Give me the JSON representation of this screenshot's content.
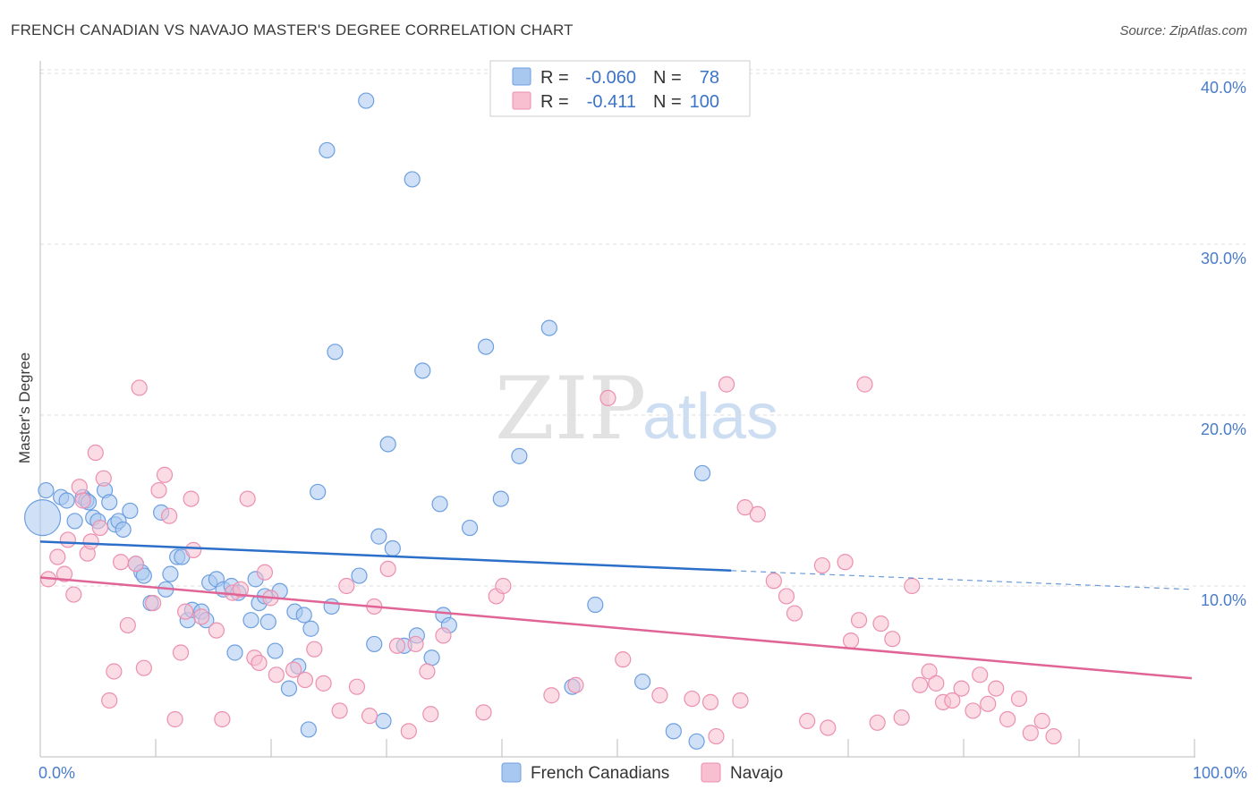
{
  "chart_data": {
    "type": "scatter",
    "title": "FRENCH CANADIAN VS NAVAJO MASTER'S DEGREE CORRELATION CHART",
    "source": "Source: ZipAtlas.com",
    "ylabel": "Master's Degree",
    "xlabel": "",
    "xlim": [
      0,
      100
    ],
    "ylim": [
      0,
      42
    ],
    "x_tick_labels": {
      "left": "0.0%",
      "right": "100.0%"
    },
    "y_ticks": [
      {
        "value": 10,
        "label": "10.0%"
      },
      {
        "value": 20,
        "label": "20.0%"
      },
      {
        "value": 30,
        "label": "30.0%"
      },
      {
        "value": 40,
        "label": "40.0%"
      }
    ],
    "grid": "horizontal dashed",
    "watermark": {
      "zip": "ZIP",
      "atlas": "atlas"
    },
    "legend": {
      "placement": "top-center",
      "rows": [
        {
          "r_label": "R =",
          "r_value": "-0.060",
          "n_label": "N =",
          "n_value": "78"
        },
        {
          "r_label": "R =",
          "r_value": "-0.411",
          "n_label": "N =",
          "n_value": "100"
        }
      ]
    },
    "series": [
      {
        "name": "French Canadians",
        "fill": "#a9c8f0",
        "stroke": "#6d9fe0",
        "line_color": "#2c6fc8",
        "trend": {
          "x0": 0,
          "y0": 12.6,
          "x1": 60,
          "y1": 10.9,
          "dash_to_x": 100,
          "dash_to_y": 9.8
        },
        "points": [
          [
            0.5,
            15.6
          ],
          [
            1.8,
            15.2
          ],
          [
            2.3,
            15.0
          ],
          [
            3.0,
            13.8
          ],
          [
            3.7,
            15.2
          ],
          [
            4.0,
            15.0
          ],
          [
            4.2,
            14.9
          ],
          [
            4.6,
            14.0
          ],
          [
            5.0,
            13.8
          ],
          [
            5.6,
            15.6
          ],
          [
            6.0,
            14.9
          ],
          [
            6.5,
            13.6
          ],
          [
            6.8,
            13.8
          ],
          [
            7.2,
            13.3
          ],
          [
            7.8,
            14.4
          ],
          [
            8.3,
            11.3
          ],
          [
            8.8,
            10.8
          ],
          [
            9.0,
            10.6
          ],
          [
            9.6,
            9.0
          ],
          [
            10.5,
            14.3
          ],
          [
            10.9,
            9.8
          ],
          [
            11.3,
            10.7
          ],
          [
            11.9,
            11.7
          ],
          [
            12.3,
            11.7
          ],
          [
            12.8,
            8.0
          ],
          [
            13.2,
            8.6
          ],
          [
            14.0,
            8.5
          ],
          [
            14.4,
            8.0
          ],
          [
            14.7,
            10.2
          ],
          [
            15.3,
            10.4
          ],
          [
            15.9,
            9.8
          ],
          [
            16.6,
            10.0
          ],
          [
            16.9,
            6.1
          ],
          [
            17.2,
            9.6
          ],
          [
            18.3,
            8.0
          ],
          [
            18.7,
            10.4
          ],
          [
            19.0,
            9.0
          ],
          [
            19.5,
            9.4
          ],
          [
            19.8,
            7.9
          ],
          [
            20.4,
            6.2
          ],
          [
            20.8,
            9.7
          ],
          [
            21.6,
            4.0
          ],
          [
            22.1,
            8.5
          ],
          [
            22.4,
            5.3
          ],
          [
            22.9,
            8.3
          ],
          [
            23.3,
            1.6
          ],
          [
            23.5,
            7.5
          ],
          [
            24.1,
            15.5
          ],
          [
            24.9,
            35.5
          ],
          [
            25.3,
            8.8
          ],
          [
            25.6,
            23.7
          ],
          [
            27.7,
            10.6
          ],
          [
            28.3,
            38.4
          ],
          [
            29.0,
            6.6
          ],
          [
            29.4,
            12.9
          ],
          [
            29.8,
            2.1
          ],
          [
            30.2,
            18.3
          ],
          [
            30.6,
            12.2
          ],
          [
            31.6,
            6.5
          ],
          [
            32.3,
            33.8
          ],
          [
            32.7,
            7.1
          ],
          [
            33.2,
            22.6
          ],
          [
            34.0,
            5.8
          ],
          [
            34.7,
            14.8
          ],
          [
            35.0,
            8.3
          ],
          [
            35.5,
            7.7
          ],
          [
            37.3,
            13.4
          ],
          [
            38.7,
            24.0
          ],
          [
            40.0,
            15.1
          ],
          [
            41.6,
            17.6
          ],
          [
            44.2,
            25.1
          ],
          [
            46.2,
            4.1
          ],
          [
            48.2,
            8.9
          ],
          [
            52.3,
            4.4
          ],
          [
            55.0,
            1.5
          ],
          [
            57.5,
            16.6
          ],
          [
            57.0,
            0.9
          ],
          [
            0.2,
            14.0
          ]
        ],
        "big_point_index": 77
      },
      {
        "name": "Navajo",
        "fill": "#f7bfd0",
        "stroke": "#ec8fb0",
        "line_color": "#e06496",
        "trend": {
          "x0": 0,
          "y0": 10.5,
          "x1": 100,
          "y1": 4.6
        },
        "points": [
          [
            0.7,
            10.4
          ],
          [
            1.5,
            11.7
          ],
          [
            2.1,
            10.7
          ],
          [
            2.4,
            12.7
          ],
          [
            2.9,
            9.5
          ],
          [
            3.4,
            15.8
          ],
          [
            3.7,
            15.0
          ],
          [
            4.1,
            11.9
          ],
          [
            4.4,
            12.6
          ],
          [
            4.8,
            17.8
          ],
          [
            5.2,
            13.4
          ],
          [
            5.5,
            16.3
          ],
          [
            6.0,
            3.3
          ],
          [
            6.4,
            5.0
          ],
          [
            7.0,
            11.4
          ],
          [
            7.6,
            7.7
          ],
          [
            8.3,
            11.3
          ],
          [
            8.6,
            21.6
          ],
          [
            9.0,
            5.2
          ],
          [
            9.8,
            9.0
          ],
          [
            10.3,
            15.6
          ],
          [
            10.8,
            16.5
          ],
          [
            11.2,
            14.1
          ],
          [
            11.7,
            2.2
          ],
          [
            12.2,
            6.1
          ],
          [
            12.6,
            8.5
          ],
          [
            13.1,
            15.1
          ],
          [
            13.3,
            12.1
          ],
          [
            14.0,
            8.2
          ],
          [
            15.3,
            7.4
          ],
          [
            15.8,
            2.2
          ],
          [
            16.7,
            9.6
          ],
          [
            17.4,
            9.8
          ],
          [
            18.0,
            15.1
          ],
          [
            18.6,
            5.8
          ],
          [
            19.0,
            5.5
          ],
          [
            19.5,
            10.8
          ],
          [
            20.0,
            9.3
          ],
          [
            20.5,
            4.8
          ],
          [
            22.0,
            5.1
          ],
          [
            23.0,
            4.5
          ],
          [
            23.8,
            6.3
          ],
          [
            24.6,
            4.3
          ],
          [
            26.0,
            2.7
          ],
          [
            26.6,
            10.0
          ],
          [
            27.5,
            4.1
          ],
          [
            28.6,
            2.4
          ],
          [
            29.0,
            8.8
          ],
          [
            30.2,
            11.0
          ],
          [
            31.0,
            6.5
          ],
          [
            32.0,
            1.5
          ],
          [
            32.6,
            6.6
          ],
          [
            33.6,
            5.0
          ],
          [
            33.9,
            2.5
          ],
          [
            35.0,
            7.1
          ],
          [
            38.5,
            2.6
          ],
          [
            39.6,
            9.4
          ],
          [
            40.2,
            10.0
          ],
          [
            44.4,
            3.6
          ],
          [
            46.5,
            4.2
          ],
          [
            49.3,
            21.0
          ],
          [
            50.6,
            5.7
          ],
          [
            53.8,
            3.6
          ],
          [
            56.6,
            3.4
          ],
          [
            58.2,
            3.2
          ],
          [
            58.7,
            1.2
          ],
          [
            59.6,
            21.8
          ],
          [
            60.8,
            3.3
          ],
          [
            61.2,
            14.6
          ],
          [
            62.3,
            14.2
          ],
          [
            63.7,
            10.3
          ],
          [
            64.8,
            9.4
          ],
          [
            65.5,
            8.4
          ],
          [
            66.6,
            2.1
          ],
          [
            67.9,
            11.2
          ],
          [
            68.4,
            1.7
          ],
          [
            69.9,
            11.4
          ],
          [
            70.4,
            6.8
          ],
          [
            71.1,
            8.0
          ],
          [
            71.6,
            21.8
          ],
          [
            72.7,
            2.0
          ],
          [
            73.0,
            7.8
          ],
          [
            74.0,
            6.9
          ],
          [
            74.8,
            2.3
          ],
          [
            75.7,
            10.0
          ],
          [
            76.4,
            4.2
          ],
          [
            77.2,
            5.0
          ],
          [
            77.8,
            4.3
          ],
          [
            78.4,
            3.2
          ],
          [
            79.2,
            3.3
          ],
          [
            80.0,
            4.0
          ],
          [
            81.0,
            2.7
          ],
          [
            81.6,
            4.8
          ],
          [
            82.3,
            3.1
          ],
          [
            83.0,
            4.0
          ],
          [
            84.0,
            2.2
          ],
          [
            85.0,
            3.4
          ],
          [
            86.0,
            1.4
          ],
          [
            87.0,
            2.1
          ],
          [
            88.0,
            1.2
          ]
        ]
      }
    ]
  },
  "bottom_legend": {
    "items": [
      {
        "label": "French Canadians",
        "color": "#a9c8f0"
      },
      {
        "label": "Navajo",
        "color": "#f7bfd0"
      }
    ]
  }
}
